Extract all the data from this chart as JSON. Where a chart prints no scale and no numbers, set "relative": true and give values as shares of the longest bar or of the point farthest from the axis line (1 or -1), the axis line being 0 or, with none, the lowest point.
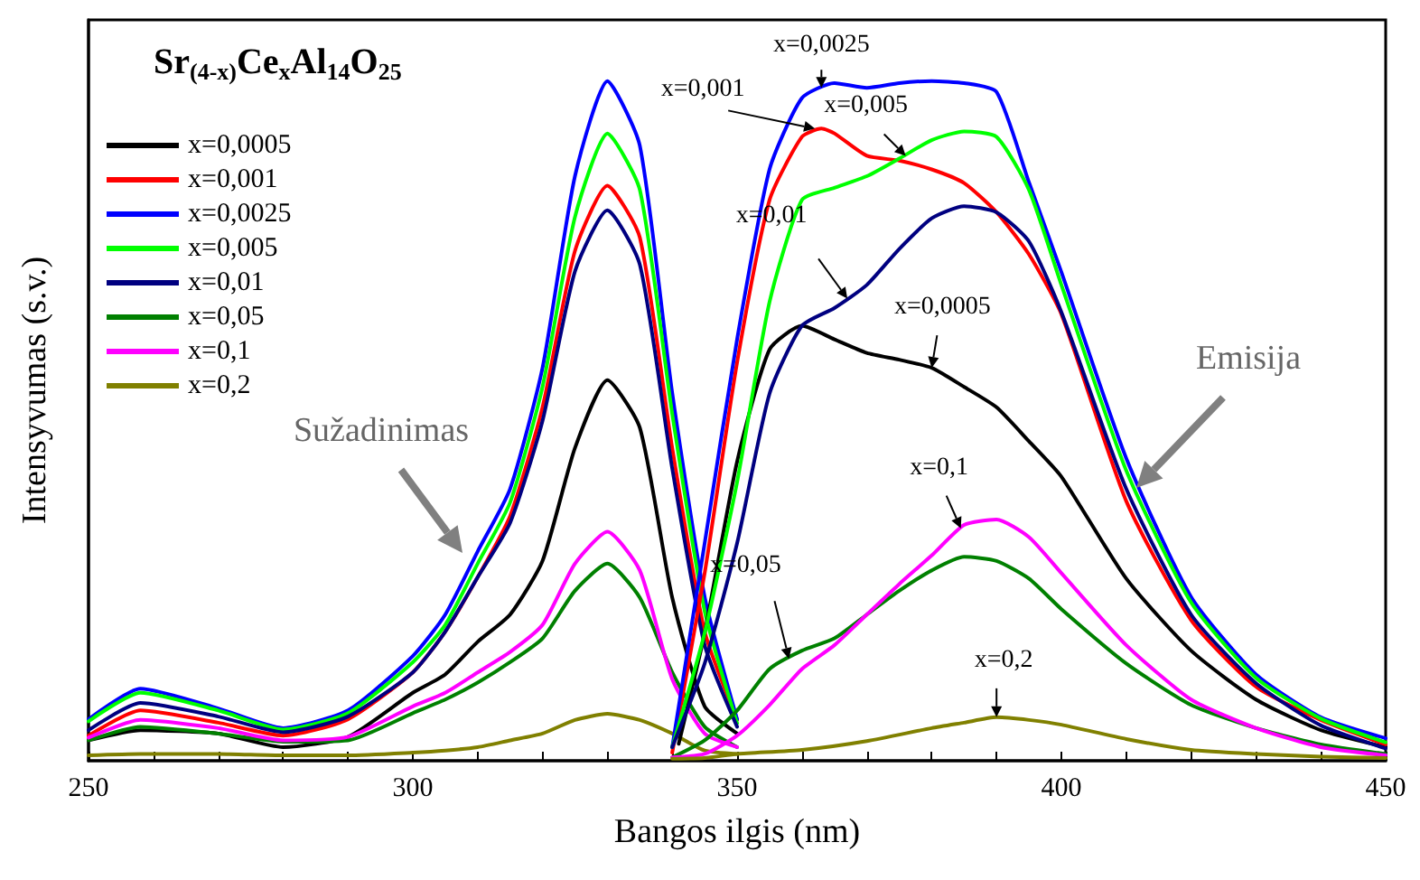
{
  "chart_data": {
    "type": "line",
    "relative": true,
    "title": "Sr$_{(4-x)}$Ce$_{x}$Al$_{14}$O$_{25}$",
    "xlabel": "Bangos ilgis (nm)",
    "ylabel": "Intensyvumas (s.v.)",
    "xlim": [
      250,
      450
    ],
    "xticks": [
      250,
      {
        "value": 260,
        "label": null
      },
      {
        "value": 270,
        "label": null
      },
      {
        "value": 280,
        "label": null
      },
      {
        "value": 290,
        "label": null
      },
      300,
      {
        "value": 310,
        "label": null
      },
      {
        "value": 320,
        "label": null
      },
      {
        "value": 330,
        "label": null
      },
      {
        "value": 340,
        "label": null
      },
      350,
      {
        "value": 360,
        "label": null
      },
      {
        "value": 370,
        "label": null
      },
      {
        "value": 380,
        "label": null
      },
      {
        "value": 390,
        "label": null
      },
      400,
      {
        "value": 410,
        "label": null
      },
      {
        "value": 420,
        "label": null
      },
      {
        "value": 430,
        "label": null
      },
      {
        "value": 440,
        "label": null
      },
      450
    ],
    "grid": false,
    "legend": "top left",
    "marker": "none",
    "line_style": "solid",
    "series": [
      {
        "name": "x=0,0005",
        "color": "#000000",
        "x": [
          250,
          258,
          270,
          280,
          290,
          300,
          305,
          310,
          315,
          320,
          325,
          330,
          335,
          340,
          345,
          350
        ],
        "values": [
          0.03,
          0.045,
          0.04,
          0.02,
          0.035,
          0.1,
          0.127,
          0.175,
          0.215,
          0.294,
          0.46,
          0.56,
          0.49,
          0.24,
          0.08,
          0.04
        ]
      },
      {
        "name": "x=0,001",
        "color": "#ff0000",
        "x": [
          250,
          258,
          270,
          280,
          290,
          300,
          305,
          310,
          315,
          320,
          325,
          330,
          335,
          340,
          345,
          350
        ],
        "values": [
          0.037,
          0.074,
          0.056,
          0.037,
          0.061,
          0.13,
          0.19,
          0.27,
          0.36,
          0.52,
          0.75,
          0.846,
          0.77,
          0.46,
          0.19,
          0.06
        ]
      },
      {
        "name": "x=0,0025",
        "color": "#0000ff",
        "x": [
          250,
          258,
          270,
          280,
          290,
          300,
          305,
          310,
          315,
          320,
          325,
          330,
          335,
          340,
          345,
          350
        ],
        "values": [
          0.061,
          0.106,
          0.077,
          0.048,
          0.074,
          0.154,
          0.215,
          0.308,
          0.4,
          0.578,
          0.86,
          1,
          0.905,
          0.541,
          0.241,
          0.061
        ]
      },
      {
        "name": "x=0,005",
        "color": "#00ff00",
        "x": [
          250,
          258,
          270,
          280,
          290,
          300,
          305,
          310,
          315,
          320,
          325,
          330,
          335,
          340,
          345,
          350
        ],
        "values": [
          0.058,
          0.1,
          0.074,
          0.046,
          0.07,
          0.145,
          0.2,
          0.29,
          0.38,
          0.55,
          0.8,
          0.923,
          0.84,
          0.51,
          0.22,
          0.055
        ]
      },
      {
        "name": "x=0,01",
        "color": "#000080",
        "x": [
          250,
          258,
          270,
          280,
          290,
          300,
          305,
          310,
          315,
          320,
          325,
          330,
          335,
          340,
          345,
          350
        ],
        "values": [
          0.045,
          0.085,
          0.065,
          0.042,
          0.065,
          0.13,
          0.19,
          0.27,
          0.35,
          0.5,
          0.72,
          0.81,
          0.73,
          0.43,
          0.17,
          0.05
        ]
      },
      {
        "name": "x=0,05",
        "color": "#008000",
        "x": [
          250,
          258,
          270,
          280,
          290,
          300,
          305,
          310,
          315,
          320,
          325,
          330,
          335,
          340,
          345,
          350
        ],
        "values": [
          0.03,
          0.05,
          0.04,
          0.028,
          0.03,
          0.07,
          0.09,
          0.115,
          0.145,
          0.18,
          0.25,
          0.29,
          0.24,
          0.13,
          0.05,
          0.02
        ]
      },
      {
        "name": "x=0,1",
        "color": "#ff00ff",
        "x": [
          250,
          258,
          270,
          280,
          290,
          300,
          305,
          310,
          315,
          320,
          325,
          330,
          335,
          340,
          345,
          350
        ],
        "values": [
          0.034,
          0.06,
          0.048,
          0.03,
          0.035,
          0.08,
          0.1,
          0.13,
          0.16,
          0.2,
          0.29,
          0.337,
          0.28,
          0.12,
          0.04,
          0.02
        ]
      },
      {
        "name": "x=0,2",
        "color": "#808000",
        "x": [
          250,
          258,
          270,
          280,
          290,
          300,
          305,
          310,
          315,
          320,
          325,
          330,
          335,
          340,
          345,
          350
        ],
        "values": [
          0.008,
          0.01,
          0.01,
          0.008,
          0.008,
          0.012,
          0.015,
          0.02,
          0.03,
          0.04,
          0.06,
          0.069,
          0.06,
          0.04,
          0.015,
          0.01
        ]
      },
      {
        "color": "#000000",
        "x": [
          341,
          345,
          350,
          355,
          360,
          365,
          370,
          375,
          380,
          385,
          390,
          395,
          400,
          410,
          420,
          430,
          440,
          450
        ],
        "values": [
          0.025,
          0.188,
          0.44,
          0.605,
          0.64,
          0.62,
          0.6,
          0.59,
          0.578,
          0.55,
          0.52,
          0.47,
          0.418,
          0.268,
          0.162,
          0.09,
          0.045,
          0.02
        ]
      },
      {
        "color": "#ff0000",
        "x": [
          340,
          345,
          350,
          355,
          360,
          363,
          365,
          370,
          375,
          380,
          385,
          390,
          395,
          400,
          410,
          420,
          430,
          440,
          450
        ],
        "values": [
          0.012,
          0.276,
          0.586,
          0.825,
          0.918,
          0.93,
          0.923,
          0.89,
          0.883,
          0.87,
          0.85,
          0.807,
          0.745,
          0.657,
          0.382,
          0.207,
          0.109,
          0.06,
          0.024
        ]
      },
      {
        "color": "#0000ff",
        "x": [
          340,
          345,
          350,
          355,
          360,
          365,
          370,
          375,
          380,
          385,
          390,
          395,
          400,
          410,
          420,
          430,
          440,
          450
        ],
        "values": [
          0.02,
          0.32,
          0.62,
          0.87,
          0.975,
          0.997,
          0.99,
          0.997,
          1,
          0.997,
          0.984,
          0.851,
          0.719,
          0.445,
          0.241,
          0.127,
          0.064,
          0.033
        ]
      },
      {
        "color": "#00ff00",
        "x": [
          340,
          345,
          350,
          355,
          360,
          365,
          370,
          375,
          380,
          385,
          390,
          395,
          400,
          410,
          420,
          430,
          440,
          450
        ],
        "values": [
          0.02,
          0.188,
          0.41,
          0.675,
          0.825,
          0.843,
          0.86,
          0.886,
          0.913,
          0.926,
          0.918,
          0.84,
          0.7,
          0.427,
          0.233,
          0.122,
          0.062,
          0.027
        ]
      },
      {
        "color": "#000080",
        "x": [
          340,
          345,
          350,
          355,
          360,
          365,
          370,
          375,
          380,
          385,
          390,
          395,
          400,
          410,
          420,
          430,
          440,
          450
        ],
        "values": [
          0.02,
          0.143,
          0.32,
          0.54,
          0.64,
          0.666,
          0.7,
          0.753,
          0.798,
          0.816,
          0.807,
          0.764,
          0.66,
          0.4,
          0.215,
          0.114,
          0.052,
          0.018
        ]
      },
      {
        "color": "#008000",
        "x": [
          340,
          345,
          350,
          355,
          360,
          365,
          370,
          375,
          380,
          385,
          390,
          395,
          400,
          410,
          420,
          430,
          440,
          450
        ],
        "values": [
          0.005,
          0.03,
          0.074,
          0.135,
          0.162,
          0.18,
          0.215,
          0.25,
          0.28,
          0.3,
          0.294,
          0.268,
          0.223,
          0.143,
          0.082,
          0.048,
          0.024,
          0.01
        ]
      },
      {
        "color": "#ff00ff",
        "x": [
          340,
          345,
          350,
          355,
          360,
          365,
          370,
          375,
          380,
          385,
          390,
          395,
          400,
          410,
          420,
          430,
          440,
          450
        ],
        "values": [
          0.005,
          0.01,
          0.037,
          0.082,
          0.135,
          0.17,
          0.215,
          0.26,
          0.302,
          0.347,
          0.355,
          0.329,
          0.276,
          0.17,
          0.09,
          0.048,
          0.02,
          0.008
        ]
      },
      {
        "color": "#808000",
        "x": [
          340,
          345,
          350,
          360,
          370,
          380,
          385,
          390,
          395,
          400,
          410,
          420,
          430,
          440,
          450
        ],
        "values": [
          0.003,
          0.004,
          0.01,
          0.016,
          0.029,
          0.048,
          0.056,
          0.064,
          0.06,
          0.053,
          0.032,
          0.016,
          0.01,
          0.006,
          0.004
        ]
      }
    ],
    "annotations": [
      {
        "text": "x=0,0025",
        "x": 363,
        "y": 0.99
      },
      {
        "text": "x=0,001",
        "x": 362,
        "y": 0.93
      },
      {
        "text": "x=0,005",
        "x": 376,
        "y": 0.89
      },
      {
        "text": "x=0,01",
        "x": 367,
        "y": 0.68
      },
      {
        "text": "x=0,0005",
        "x": 380,
        "y": 0.578
      },
      {
        "text": "x=0,05",
        "x": 358,
        "y": 0.15
      },
      {
        "text": "x=0,1",
        "x": 384.5,
        "y": 0.342
      },
      {
        "text": "x=0,2",
        "x": 390,
        "y": 0.064
      },
      "Sužadinimas",
      "Emisija"
    ]
  }
}
